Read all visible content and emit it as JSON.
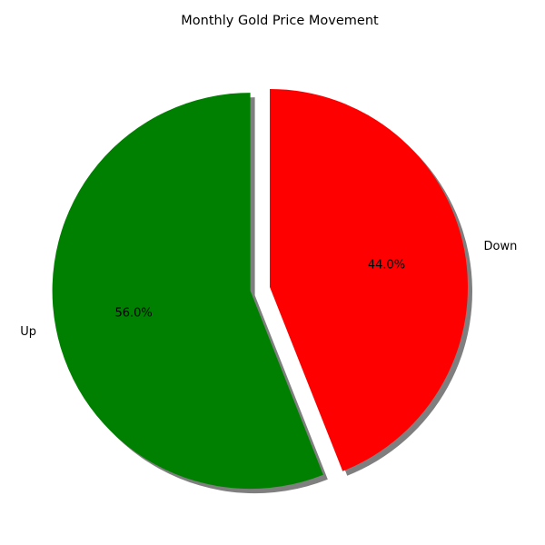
{
  "chart_data": {
    "type": "pie",
    "title": "Monthly Gold Price Movement",
    "labels": [
      "Up",
      "Down"
    ],
    "values": [
      56.0,
      44.0
    ],
    "percent_labels": [
      "56.0%",
      "44.0%"
    ],
    "colors": [
      "#008000",
      "#ff0000"
    ],
    "exploded": [
      "Up"
    ],
    "shadow": true,
    "start_angle_deg": 90,
    "direction": "counterclockwise",
    "legend": "none"
  }
}
